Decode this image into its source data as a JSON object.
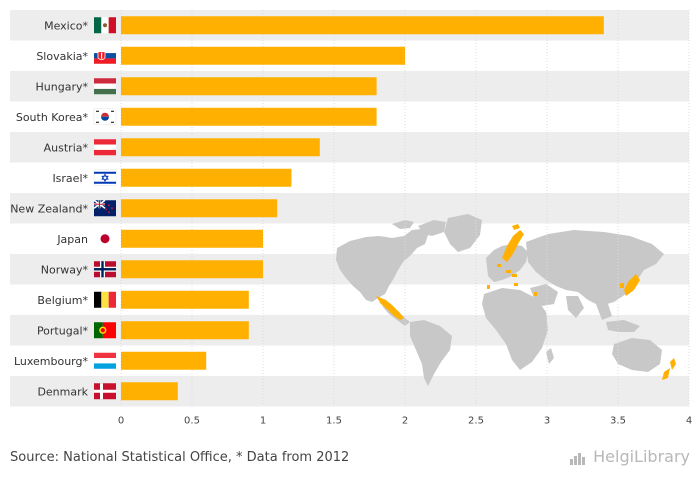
{
  "chart_data": {
    "type": "bar",
    "orientation": "horizontal",
    "categories": [
      "Mexico*",
      "Slovakia*",
      "Hungary*",
      "South Korea*",
      "Austria*",
      "Israel*",
      "New Zealand*",
      "Japan",
      "Norway*",
      "Belgium*",
      "Portugal*",
      "Luxembourg*",
      "Denmark"
    ],
    "values": [
      3.4,
      2.0,
      1.8,
      1.8,
      1.4,
      1.2,
      1.1,
      1.0,
      1.0,
      0.9,
      0.9,
      0.6,
      0.4
    ],
    "xlim": [
      0,
      4
    ],
    "xticks": [
      0,
      0.5,
      1,
      1.5,
      2,
      2.5,
      3,
      3.5,
      4
    ],
    "xtick_labels": [
      "0",
      "0.5",
      "1",
      "1.5",
      "2",
      "2.5",
      "3",
      "3.5",
      "4"
    ],
    "title": "",
    "xlabel": "",
    "ylabel": "",
    "grid": true,
    "bar_color": "#FFB000",
    "stripe_color": "#EDEDED",
    "flags": [
      "mexico-flag-icon",
      "slovakia-flag-icon",
      "hungary-flag-icon",
      "south-korea-flag-icon",
      "austria-flag-icon",
      "israel-flag-icon",
      "new-zealand-flag-icon",
      "japan-flag-icon",
      "norway-flag-icon",
      "belgium-flag-icon",
      "portugal-flag-icon",
      "luxembourg-flag-icon",
      "denmark-flag-icon"
    ]
  },
  "footer": {
    "source": "Source: National Statistical Office, * Data from 2012",
    "brand": "HelgiLibrary"
  },
  "map": {
    "icon": "world-map-icon",
    "land_color": "#C8C8C8",
    "highlight_color": "#FFB000"
  }
}
